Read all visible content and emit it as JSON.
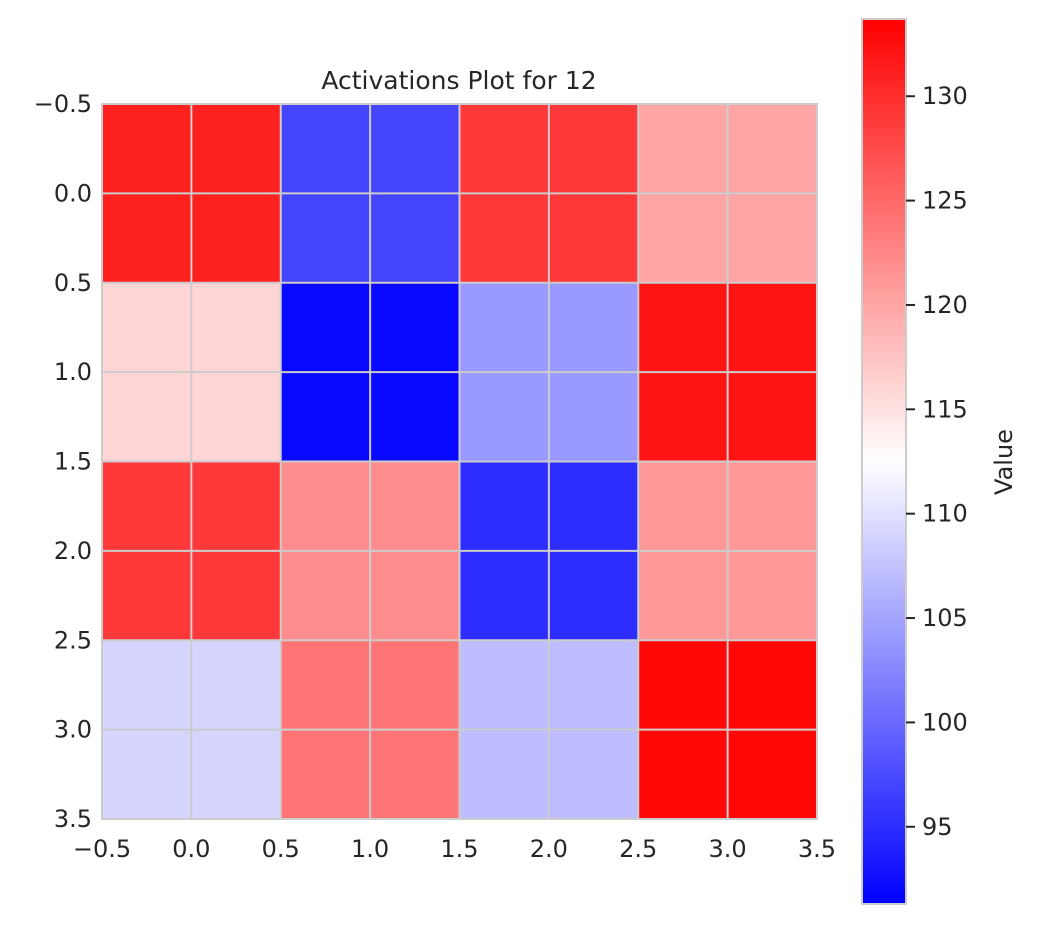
{
  "chart_data": {
    "type": "heatmap",
    "title": "Activations Plot for 12",
    "colormap": "bwr",
    "grid": true,
    "x_tick_labels": [
      "−0.5",
      "0.0",
      "0.5",
      "1.0",
      "1.5",
      "2.0",
      "2.5",
      "3.0",
      "3.5"
    ],
    "y_tick_labels": [
      "−0.5",
      "0.0",
      "0.5",
      "1.0",
      "1.5",
      "2.0",
      "2.5",
      "3.0",
      "3.5"
    ],
    "x_range": [
      -0.5,
      3.5
    ],
    "y_range": [
      -0.5,
      3.5
    ],
    "y_inverted": true,
    "values": [
      [
        131,
        97,
        129,
        120
      ],
      [
        116,
        92,
        104,
        132
      ],
      [
        129,
        122,
        95,
        121
      ],
      [
        109,
        124,
        107,
        133
      ]
    ],
    "colorbar": {
      "label": "Value",
      "range": [
        91.3,
        133.7
      ],
      "ticks": [
        95,
        100,
        105,
        110,
        115,
        120,
        125,
        130
      ],
      "tick_labels": [
        "95",
        "100",
        "105",
        "110",
        "115",
        "120",
        "125",
        "130"
      ]
    },
    "colors": {
      "low": "#0000ff",
      "mid": "#ffffff",
      "high": "#ff0000",
      "grid": "#cccccc",
      "axis_text": "#262626"
    }
  }
}
